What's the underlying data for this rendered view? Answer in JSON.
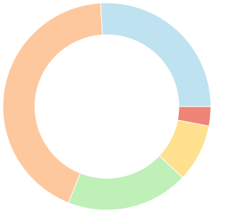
{
  "chart_data": {
    "type": "donut",
    "values": [
      26,
      3,
      9,
      19,
      43
    ],
    "colors": [
      "#bee2f0",
      "#ee8576",
      "#fee08e",
      "#bff0b8",
      "#fec89e"
    ]
  }
}
